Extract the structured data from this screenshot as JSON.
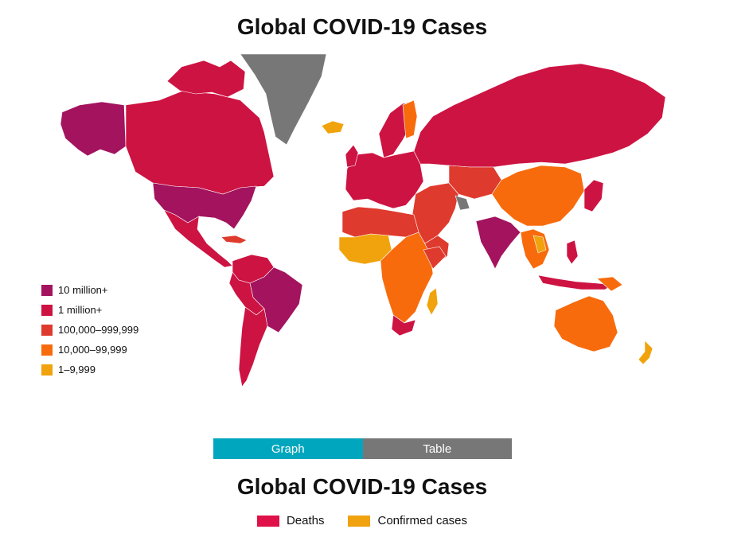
{
  "map": {
    "title": "Global COVID-19 Cases",
    "legend": [
      {
        "label": "10 million+",
        "color": "#a3135e"
      },
      {
        "label": "1 million+",
        "color": "#cd1342"
      },
      {
        "label": "100,000–999,999",
        "color": "#df3a2e"
      },
      {
        "label": "10,000–99,999",
        "color": "#f76b0c"
      },
      {
        "label": "1–9,999",
        "color": "#f0a30c"
      }
    ],
    "no_data_color": "#777777",
    "legend_placement": "bottom-left"
  },
  "tabs": [
    {
      "label": "Graph",
      "active": true,
      "color": "#00a6bd"
    },
    {
      "label": "Table",
      "active": false,
      "color": "#777777"
    }
  ],
  "chart": {
    "title": "Global COVID-19 Cases",
    "series": [
      {
        "name": "Deaths",
        "color": "#e01048"
      },
      {
        "name": "Confirmed cases",
        "color": "#f0a20f"
      }
    ],
    "legend_placement": "top-center"
  }
}
